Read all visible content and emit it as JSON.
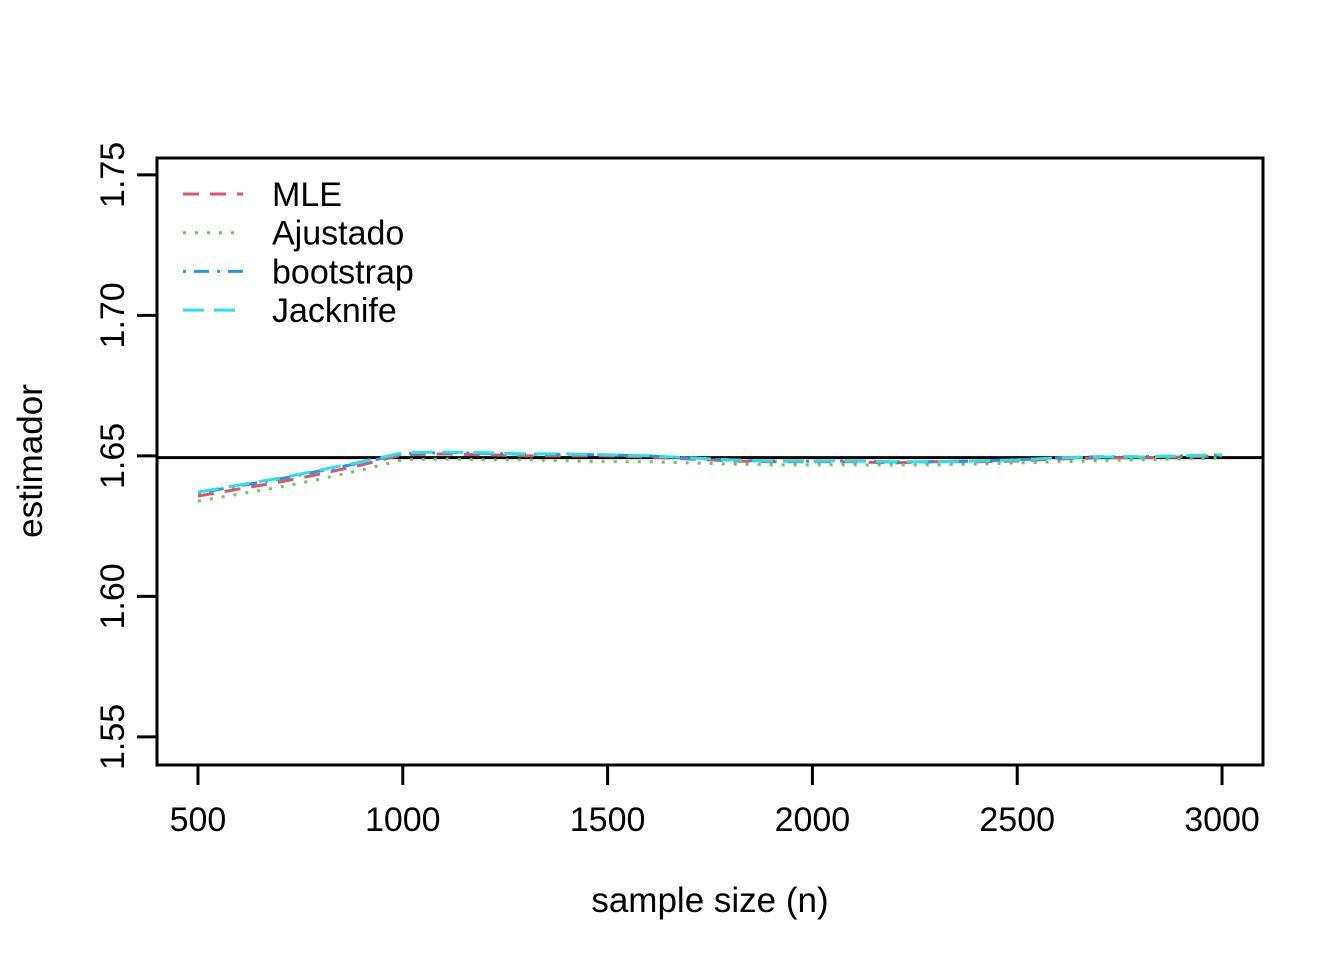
{
  "chart_data": {
    "type": "line",
    "title": "",
    "xlabel": "sample size (n)",
    "ylabel": "estimador",
    "x_ticks": [
      "500",
      "1000",
      "1500",
      "2000",
      "2500",
      "3000"
    ],
    "y_ticks": [
      "1.55",
      "1.60",
      "1.65",
      "1.70",
      "1.75"
    ],
    "xlim": [
      400,
      3100
    ],
    "ylim": [
      1.54,
      1.756
    ],
    "grid": false,
    "legend_position": "topleft",
    "background": "#ffffff",
    "axis_color": "#000000",
    "reference_line": {
      "value": 1.6494,
      "color": "#000000",
      "style": "solid"
    },
    "x": [
      500,
      600,
      700,
      800,
      900,
      1000,
      1100,
      1200,
      1300,
      1400,
      1500,
      1600,
      1700,
      1800,
      1900,
      2000,
      2100,
      2200,
      2300,
      2400,
      2500,
      2600,
      2700,
      2800,
      2900,
      3000
    ],
    "series": [
      {
        "name": "MLE",
        "color": "#DF536B",
        "linetype": "dashed",
        "values": [
          1.6357,
          1.6382,
          1.6407,
          1.6436,
          1.6468,
          1.6504,
          1.6507,
          1.6504,
          1.65,
          1.65,
          1.65,
          1.6496,
          1.6489,
          1.6482,
          1.6479,
          1.6479,
          1.6479,
          1.6475,
          1.6479,
          1.6479,
          1.6482,
          1.6489,
          1.6493,
          1.6493,
          1.6496,
          1.65
        ]
      },
      {
        "name": "Ajustado",
        "color": "#61D04F",
        "linetype": "dotted",
        "values": [
          1.6339,
          1.6364,
          1.6389,
          1.6418,
          1.645,
          1.6486,
          1.6489,
          1.6486,
          1.6486,
          1.6482,
          1.6479,
          1.6479,
          1.6475,
          1.6471,
          1.6468,
          1.6468,
          1.6468,
          1.6468,
          1.6468,
          1.6471,
          1.6475,
          1.6479,
          1.6482,
          1.6486,
          1.6489,
          1.6493
        ]
      },
      {
        "name": "bootstrap",
        "color": "#2297E6",
        "linetype": "dotdash",
        "values": [
          1.6368,
          1.6393,
          1.6418,
          1.6447,
          1.6476,
          1.6508,
          1.6512,
          1.6509,
          1.6506,
          1.6506,
          1.6503,
          1.65,
          1.6492,
          1.6485,
          1.6481,
          1.6481,
          1.6482,
          1.6478,
          1.6479,
          1.6482,
          1.6486,
          1.6493,
          1.6497,
          1.6497,
          1.65,
          1.6503
        ]
      },
      {
        "name": "Jacknife",
        "color": "#28E2E5",
        "linetype": "longdash",
        "values": [
          1.6371,
          1.6396,
          1.6421,
          1.645,
          1.6479,
          1.6511,
          1.6514,
          1.6511,
          1.6507,
          1.6507,
          1.6504,
          1.65,
          1.6493,
          1.6486,
          1.6482,
          1.6482,
          1.6482,
          1.6479,
          1.6479,
          1.6482,
          1.6486,
          1.6493,
          1.6496,
          1.6496,
          1.65,
          1.6504
        ]
      }
    ]
  }
}
